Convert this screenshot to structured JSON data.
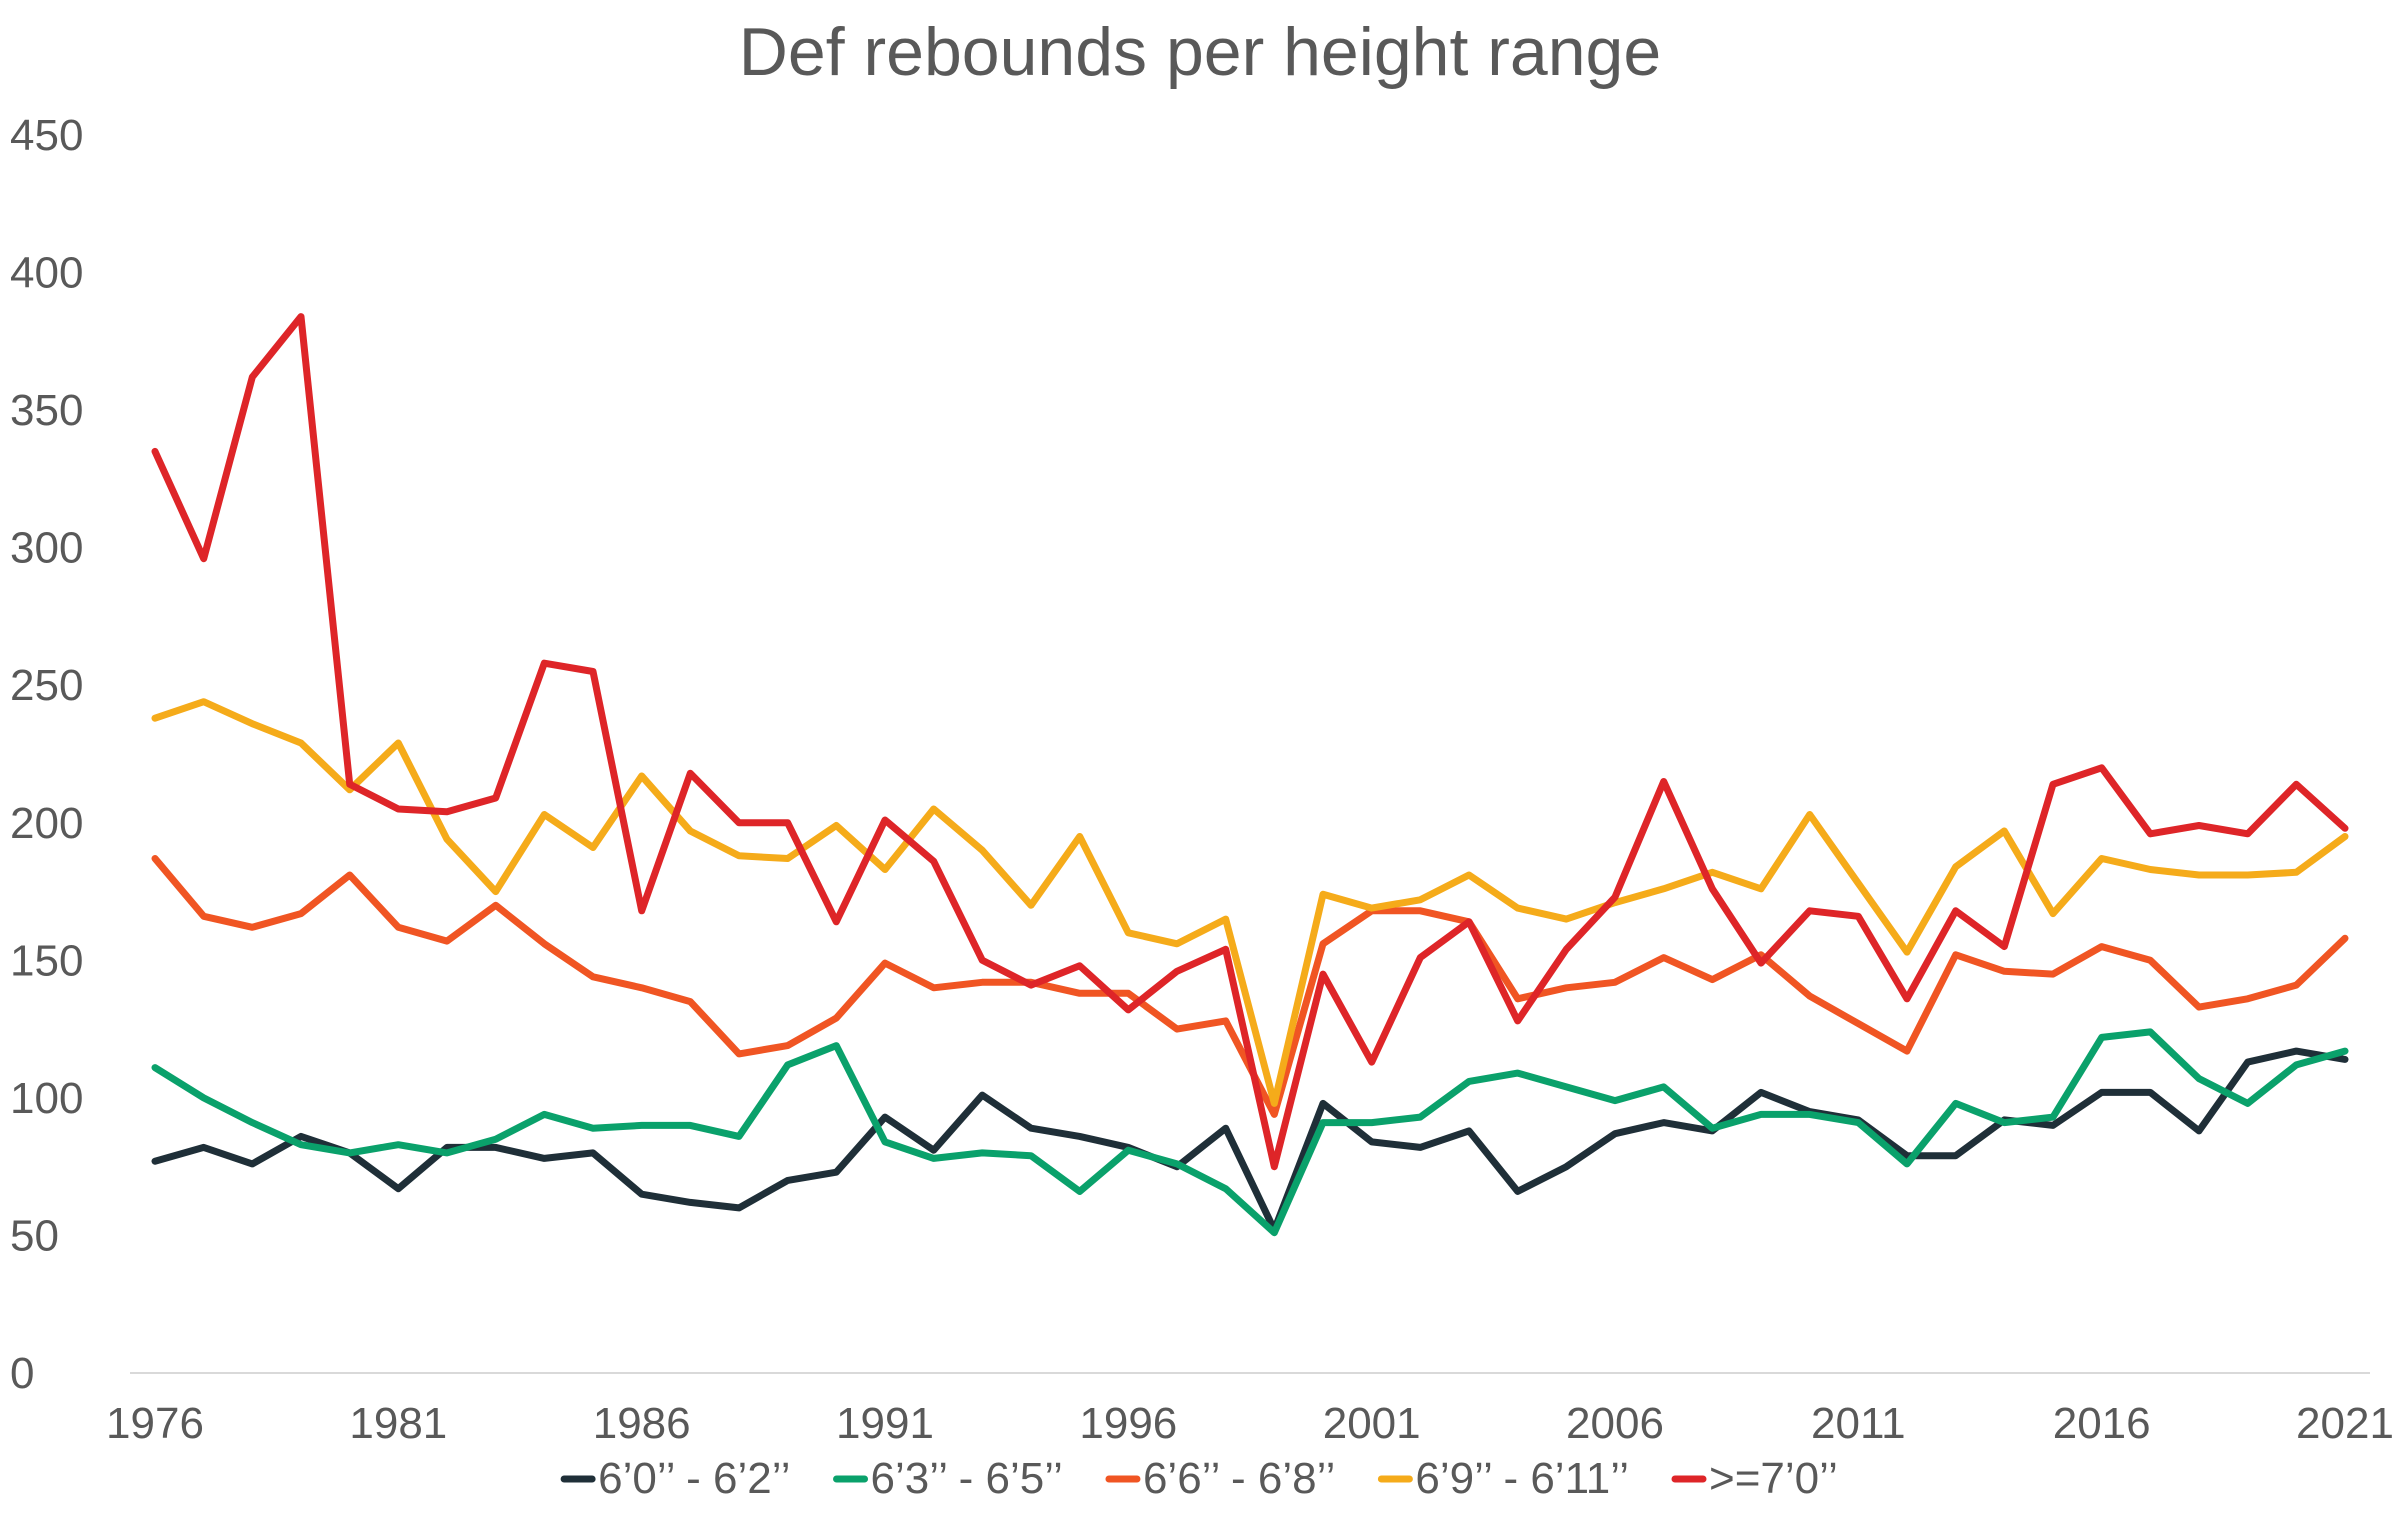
{
  "chart_data": {
    "type": "line",
    "title": "Def rebounds per height range",
    "xlabel": "",
    "ylabel": "",
    "ylim": [
      0,
      450
    ],
    "y_ticks": [
      0,
      50,
      100,
      150,
      200,
      250,
      300,
      350,
      400,
      450
    ],
    "x_tick_labels": [
      "1976",
      "1981",
      "1986",
      "1991",
      "1996",
      "2001",
      "2006",
      "2011",
      "2016",
      "2021"
    ],
    "x": [
      1976,
      1977,
      1978,
      1979,
      1980,
      1981,
      1982,
      1983,
      1984,
      1985,
      1986,
      1987,
      1988,
      1989,
      1990,
      1991,
      1992,
      1993,
      1994,
      1995,
      1996,
      1997,
      1998,
      1999,
      2000,
      2001,
      2002,
      2003,
      2004,
      2005,
      2006,
      2007,
      2008,
      2009,
      2010,
      2011,
      2012,
      2013,
      2014,
      2015,
      2016,
      2017,
      2018,
      2019,
      2020,
      2021
    ],
    "grid": false,
    "legend_position": "bottom",
    "series": [
      {
        "name": "6’0’’ - 6’2’’",
        "color": "#1f2f38",
        "values": [
          77,
          82,
          76,
          86,
          80,
          67,
          82,
          82,
          78,
          80,
          65,
          62,
          60,
          70,
          73,
          93,
          81,
          101,
          89,
          86,
          82,
          75,
          89,
          52,
          98,
          84,
          82,
          88,
          66,
          75,
          87,
          91,
          88,
          102,
          95,
          92,
          79,
          79,
          92,
          90,
          102,
          102,
          88,
          113,
          117,
          114
        ]
      },
      {
        "name": "6’3’’ - 6’5’’",
        "color": "#0aa16b",
        "values": [
          111,
          100,
          91,
          83,
          80,
          83,
          80,
          85,
          94,
          89,
          90,
          90,
          86,
          112,
          119,
          84,
          78,
          80,
          79,
          66,
          81,
          76,
          67,
          51,
          91,
          91,
          93,
          106,
          109,
          104,
          99,
          104,
          89,
          94,
          94,
          91,
          76,
          98,
          91,
          93,
          122,
          124,
          107,
          98,
          112,
          117
        ]
      },
      {
        "name": "6’6’’ - 6’8’’",
        "color": "#f05523",
        "values": [
          187,
          166,
          162,
          167,
          181,
          162,
          157,
          170,
          156,
          144,
          140,
          135,
          116,
          119,
          129,
          149,
          140,
          142,
          142,
          138,
          138,
          125,
          128,
          94,
          156,
          168,
          168,
          164,
          136,
          140,
          142,
          151,
          143,
          152,
          137,
          127,
          117,
          152,
          146,
          145,
          155,
          150,
          133,
          136,
          141,
          158
        ]
      },
      {
        "name": "6’9’’ - 6’11’’",
        "color": "#f5ab1a",
        "values": [
          238,
          244,
          236,
          229,
          212,
          229,
          194,
          175,
          203,
          191,
          217,
          197,
          188,
          187,
          199,
          183,
          205,
          190,
          170,
          195,
          160,
          156,
          165,
          98,
          174,
          169,
          172,
          181,
          169,
          165,
          171,
          176,
          182,
          176,
          203,
          178,
          153,
          184,
          197,
          167,
          187,
          183,
          181,
          181,
          182,
          195
        ]
      },
      {
        "name": ">=7’0’’",
        "color": "#de2528",
        "values": [
          335,
          296,
          362,
          384,
          214,
          205,
          204,
          209,
          258,
          255,
          168,
          218,
          200,
          200,
          164,
          201,
          186,
          150,
          141,
          148,
          132,
          146,
          154,
          75,
          145,
          113,
          151,
          164,
          128,
          154,
          173,
          215,
          176,
          149,
          168,
          166,
          136,
          168,
          155,
          214,
          220,
          196,
          199,
          196,
          214,
          198
        ]
      }
    ]
  }
}
